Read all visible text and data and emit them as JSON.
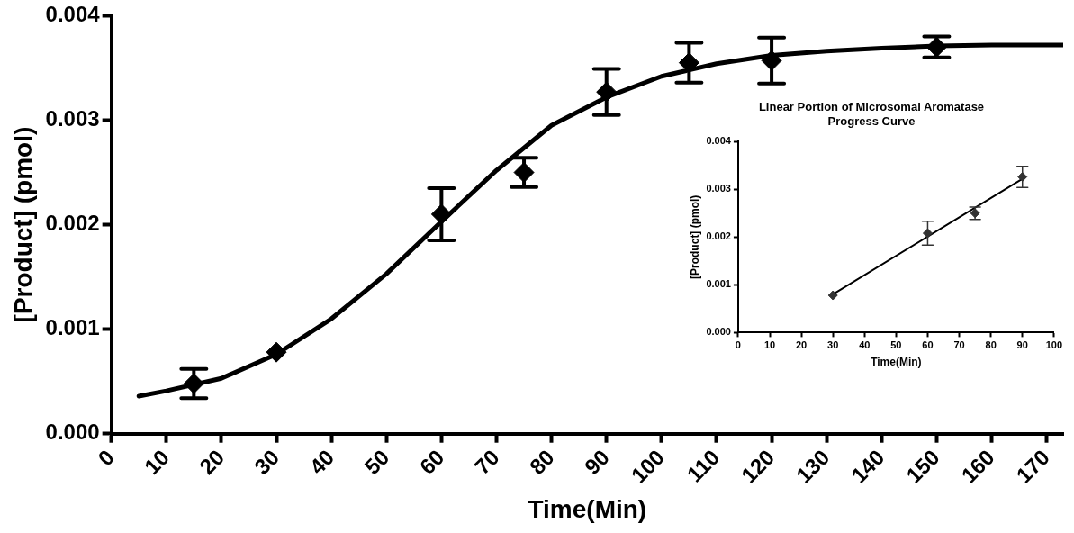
{
  "chart_data": [
    {
      "type": "scatter",
      "xlabel": "Time(Min)",
      "ylabel": "[Product] (pmol)",
      "xlim": [
        0,
        173
      ],
      "xticks": [
        0,
        10,
        20,
        30,
        40,
        50,
        60,
        70,
        80,
        90,
        100,
        110,
        120,
        130,
        140,
        150,
        160,
        170
      ],
      "ylim": [
        0,
        0.004
      ],
      "yticks": [
        {
          "value": 0,
          "label": "0.000"
        },
        {
          "value": 0.001,
          "label": "0.001"
        },
        {
          "value": 0.002,
          "label": "0.002"
        },
        {
          "value": 0.003,
          "label": "0.003"
        },
        {
          "value": 0.004,
          "label": "0.004"
        }
      ],
      "grid": false,
      "legend": false,
      "series": [
        {
          "type": "scatter",
          "marker": "diamond",
          "color": "#000000",
          "x": [
            15,
            30,
            60,
            75,
            90,
            105,
            120,
            150
          ],
          "values": [
            0.00048,
            0.00078,
            0.0021,
            0.0025,
            0.00327,
            0.00355,
            0.00357,
            0.0037
          ],
          "errors": [
            0.00014,
            null,
            0.00025,
            0.00014,
            0.00022,
            0.00019,
            0.00022,
            0.0001
          ]
        },
        {
          "type": "line",
          "marker": "none",
          "color": "#000000",
          "x": [
            5,
            10,
            20,
            30,
            40,
            50,
            60,
            70,
            80,
            90,
            100,
            110,
            120,
            130,
            140,
            150,
            160,
            173
          ],
          "values": [
            0.00036,
            0.00041,
            0.00053,
            0.00076,
            0.0011,
            0.00153,
            0.00203,
            0.00252,
            0.00295,
            0.00322,
            0.00342,
            0.00354,
            0.00362,
            0.00366,
            0.00369,
            0.00371,
            0.00372,
            0.00372
          ]
        }
      ]
    },
    {
      "type": "scatter",
      "title": "Linear Portion of Microsomal Aromatase Progress Curve",
      "xlabel": "Time(Min)",
      "ylabel": "[Product] (pmol)",
      "xlim": [
        0,
        100
      ],
      "xticks": [
        0,
        10,
        20,
        30,
        40,
        50,
        60,
        70,
        80,
        90,
        100
      ],
      "ylim": [
        0,
        0.004
      ],
      "yticks": [
        {
          "value": 0,
          "label": "0.000"
        },
        {
          "value": 0.001,
          "label": "0.001"
        },
        {
          "value": 0.002,
          "label": "0.002"
        },
        {
          "value": 0.003,
          "label": "0.003"
        },
        {
          "value": 0.004,
          "label": "0.004"
        }
      ],
      "grid": false,
      "legend": false,
      "series": [
        {
          "type": "scatter",
          "marker": "diamond",
          "color": "#333333",
          "x": [
            30,
            60,
            75,
            90
          ],
          "values": [
            0.00078,
            0.00208,
            0.0025,
            0.00326
          ],
          "errors": [
            null,
            0.00025,
            0.00013,
            0.00022
          ]
        },
        {
          "type": "line",
          "marker": "none",
          "color": "#000000",
          "x": [
            30,
            90
          ],
          "values": [
            0.0008,
            0.00322
          ]
        }
      ]
    }
  ]
}
